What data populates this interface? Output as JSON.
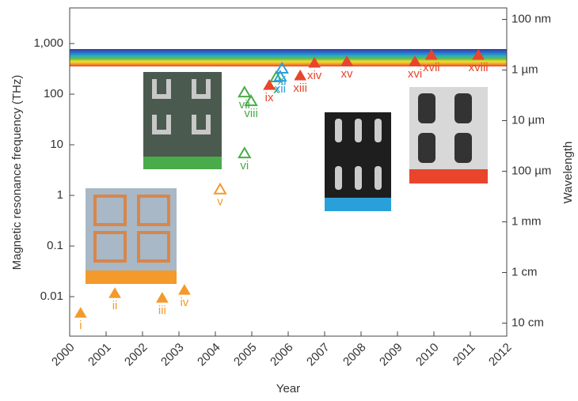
{
  "chart_data": {
    "type": "scatter",
    "x_label": "Year",
    "y_label": "Magnetic resonance frequency (THz)",
    "y2_label": "Wavelength",
    "log_y": true,
    "xlim": [
      2000,
      2012
    ],
    "xticks": [
      2000,
      2001,
      2002,
      2003,
      2004,
      2005,
      2006,
      2007,
      2008,
      2009,
      2010,
      2011,
      2012
    ],
    "ylim": [
      0.00166,
      5050
    ],
    "yticks": [
      {
        "value": 1000,
        "label": "1,000"
      },
      100,
      10,
      1,
      0.1,
      0.01
    ],
    "y2lim": [
      0.0594,
      181000
    ],
    "y2ticks": [
      {
        "value": 0.1,
        "label": "100 nm"
      },
      {
        "value": 1,
        "label": "1 µm"
      },
      {
        "value": 10,
        "label": "10 µm"
      },
      {
        "value": 100,
        "label": "100 µm"
      },
      {
        "value": 1000,
        "label": "1 mm"
      },
      {
        "value": 10000,
        "label": "1 cm"
      },
      {
        "value": 100000,
        "label": "10 cm"
      }
    ],
    "series": [
      {
        "color": "#f39a2b",
        "marker": "filled",
        "x": [
          2000.3,
          2001.24,
          2002.54,
          2003.15
        ],
        "values": [
          0.0047,
          0.0115,
          0.0093,
          0.0133
        ],
        "point_labels": [
          "i",
          "ii",
          "iii",
          "iv"
        ]
      },
      {
        "color": "#f39a2b",
        "marker": "open",
        "x": [
          2004.13
        ],
        "values": [
          1.3
        ],
        "point_labels": [
          "v"
        ]
      },
      {
        "color": "#4aab4a",
        "marker": "open",
        "x": [
          2004.8,
          2004.8,
          2004.98,
          2005.67
        ],
        "values": [
          6.7,
          107,
          72,
          213
        ],
        "point_labels": [
          "vi",
          "vii",
          "viii",
          "x"
        ]
      },
      {
        "color": "#2aa0da",
        "marker": "open",
        "x": [
          2005.83,
          2005.78
        ],
        "values": [
          316,
          220
        ],
        "point_labels": [
          "xi",
          "xii"
        ]
      },
      {
        "color": "#e8452c",
        "marker": "filled",
        "x": [
          2005.48,
          2006.33,
          2006.72,
          2007.61,
          2009.48,
          2009.93,
          2011.22
        ],
        "values": [
          148,
          229,
          407,
          437,
          437,
          583,
          583
        ],
        "point_labels": [
          "ix",
          "xiii",
          "xiv",
          "xv",
          "xvi",
          "xvii",
          "xviii"
        ]
      }
    ]
  }
}
